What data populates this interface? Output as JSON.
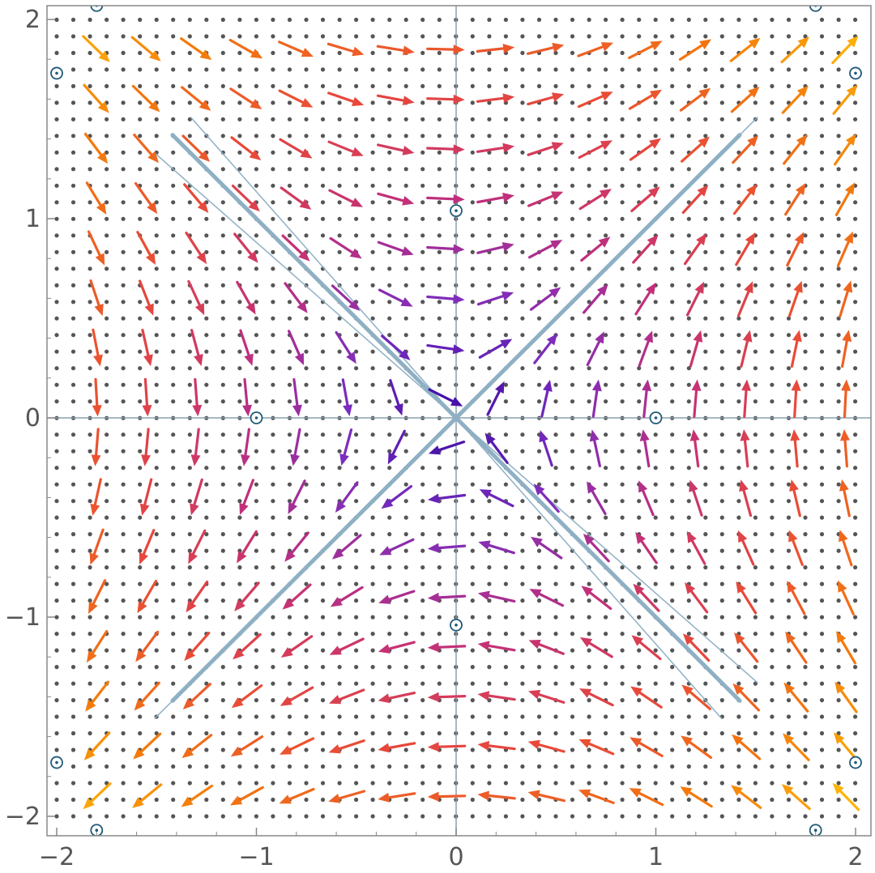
{
  "chart_data": {
    "type": "vector-field",
    "title": "",
    "xlabel": "",
    "ylabel": "",
    "xlim": [
      -2.02,
      2.02
    ],
    "ylim": [
      -2.08,
      2.02
    ],
    "field": {
      "u": "y",
      "v": "x"
    },
    "arrow_grid": {
      "x_start": -1.8,
      "y_start": -1.9,
      "step": 0.25,
      "count": 16
    },
    "dot_grid": {
      "start": -2.0,
      "step": 0.0833,
      "count": 49
    },
    "x_ticks": [
      {
        "value": -2,
        "label": "−2"
      },
      {
        "value": -1,
        "label": "−1"
      },
      {
        "value": 0,
        "label": "0"
      },
      {
        "value": 1,
        "label": "1"
      },
      {
        "value": 2,
        "label": "2"
      }
    ],
    "y_ticks": [
      {
        "value": -2,
        "label": "−2"
      },
      {
        "value": -1,
        "label": "−1"
      },
      {
        "value": 0,
        "label": "0"
      },
      {
        "value": 1,
        "label": "1"
      },
      {
        "value": 2,
        "label": "2"
      }
    ],
    "separatrices": [
      {
        "from": [
          -1.42,
          1.42
        ],
        "to": [
          1.42,
          -1.42
        ],
        "weight": "thick"
      },
      {
        "from": [
          -1.42,
          -1.42
        ],
        "to": [
          1.42,
          1.42
        ],
        "weight": "thick"
      }
    ],
    "marked_points": [
      [
        -1.8,
        2.07
      ],
      [
        1.8,
        2.07
      ],
      [
        -2.0,
        1.73
      ],
      [
        2.0,
        1.73
      ],
      [
        0.0,
        1.04
      ],
      [
        -1.0,
        0.0
      ],
      [
        1.0,
        0.0
      ],
      [
        0.0,
        -1.04
      ],
      [
        -2.0,
        -1.73
      ],
      [
        2.0,
        -1.73
      ],
      [
        -1.8,
        -2.07
      ],
      [
        1.8,
        -2.07
      ]
    ],
    "colors": {
      "low_magnitude": "#3a0ca3",
      "mid_low": "#7b2cbf",
      "mid": "#c2307a",
      "mid_high": "#e8483a",
      "high": "#f47a0c",
      "highest": "#ffc107",
      "separatrix": "#8fb0c4",
      "marker": "#1f5a7a",
      "dot": "#555555",
      "frame": "#888888"
    },
    "grid": false,
    "legend": "none"
  }
}
